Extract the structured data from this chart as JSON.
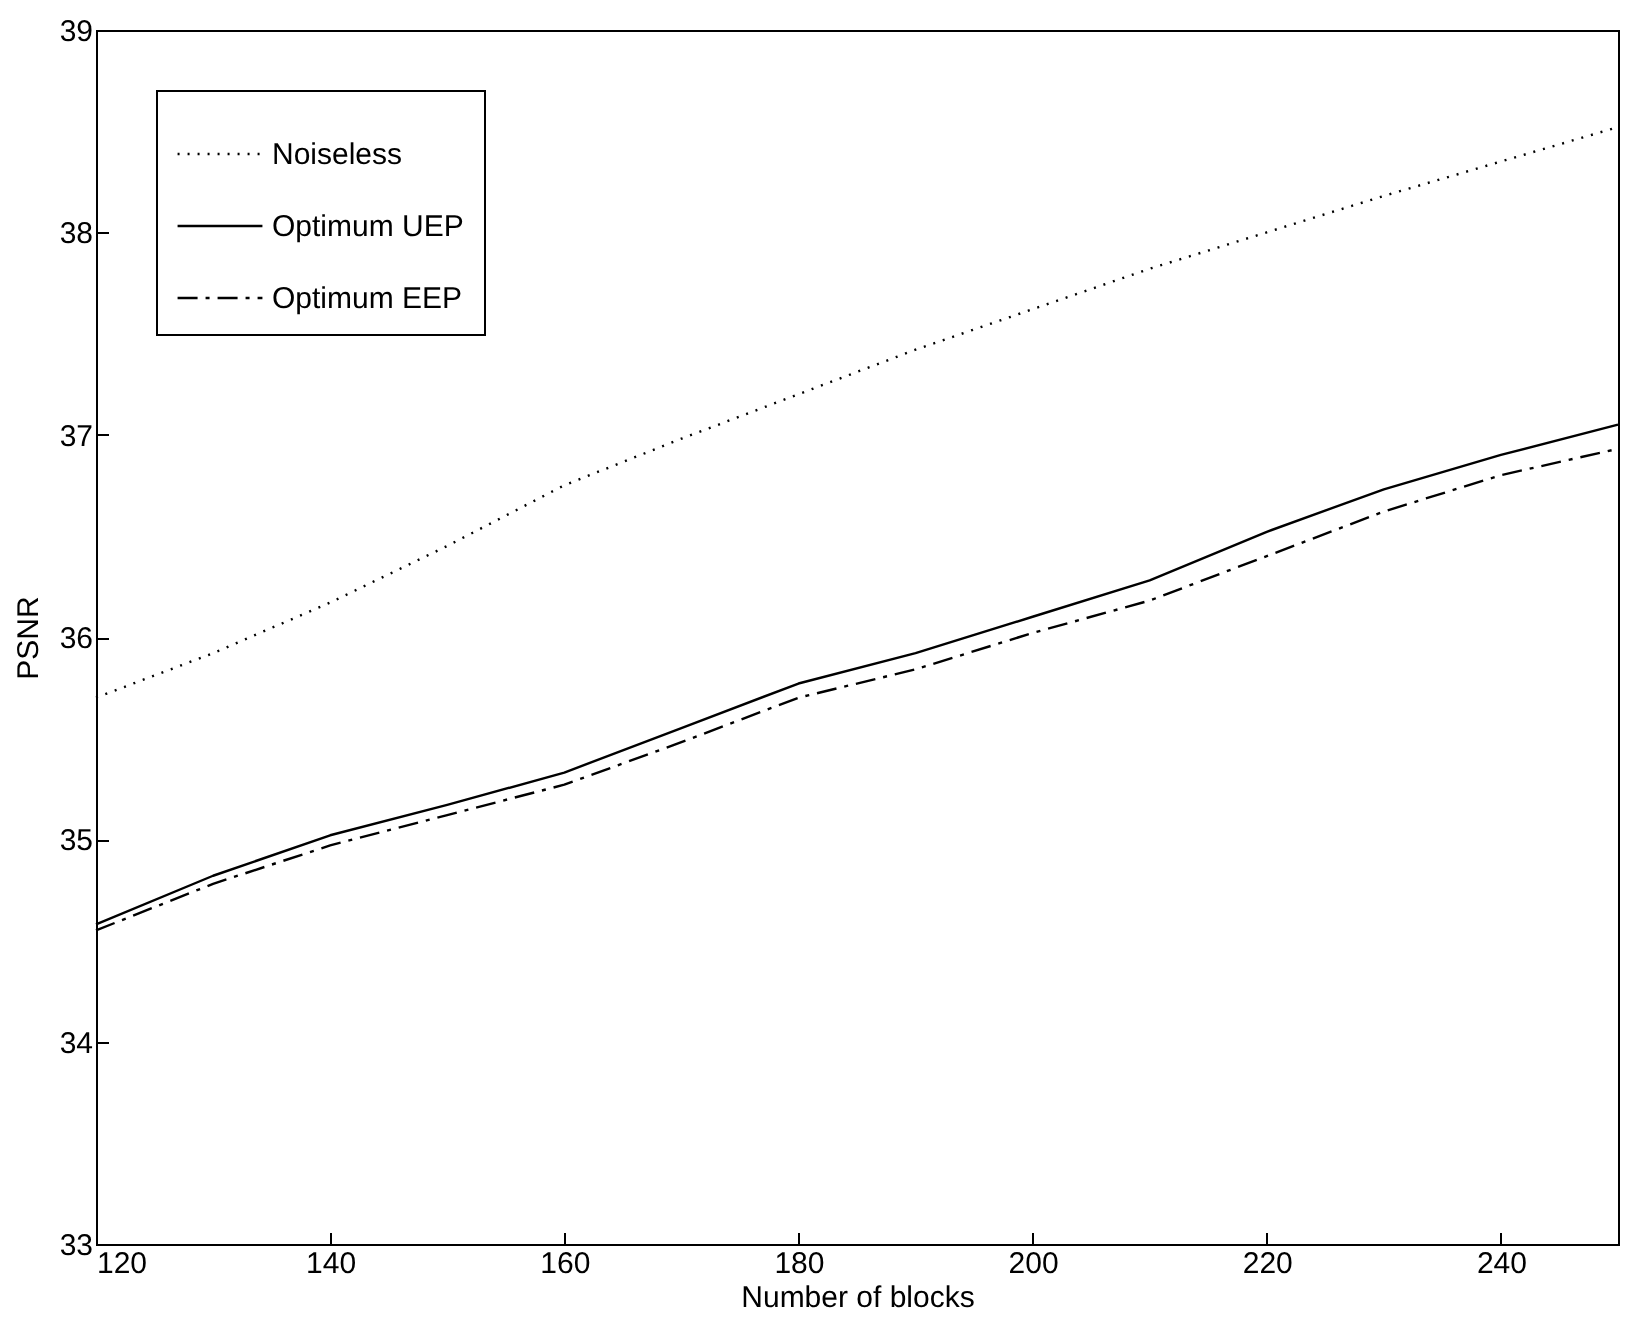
{
  "chart_data": {
    "type": "line",
    "xlabel": "Number of blocks",
    "ylabel": "PSNR",
    "x": [
      120,
      130,
      140,
      150,
      160,
      170,
      180,
      190,
      200,
      210,
      220,
      230,
      240,
      250
    ],
    "xlim": [
      120,
      250
    ],
    "xticks": [
      120,
      140,
      160,
      180,
      200,
      220,
      240
    ],
    "ylim": [
      33,
      39
    ],
    "yticks": [
      33,
      34,
      35,
      36,
      37,
      38,
      39
    ],
    "grid": false,
    "legend": "top left",
    "marker": "none",
    "series": [
      {
        "name": "Noiseless",
        "color": "#000000",
        "line_style": "dotted",
        "values": [
          35.7,
          35.92,
          36.17,
          36.45,
          36.75,
          36.98,
          37.2,
          37.42,
          37.62,
          37.82,
          38.0,
          38.18,
          38.35,
          38.52
        ]
      },
      {
        "name": "Optimum UEP",
        "color": "#000000",
        "line_style": "solid",
        "values": [
          34.58,
          34.82,
          35.02,
          35.17,
          35.33,
          35.55,
          35.77,
          35.92,
          36.1,
          36.28,
          36.52,
          36.73,
          36.9,
          37.05
        ]
      },
      {
        "name": "Optimum EEP",
        "color": "#000000",
        "line_style": "dashed",
        "values": [
          34.55,
          34.78,
          34.97,
          35.12,
          35.27,
          35.48,
          35.7,
          35.84,
          36.02,
          36.18,
          36.4,
          36.62,
          36.8,
          36.93
        ]
      }
    ]
  }
}
